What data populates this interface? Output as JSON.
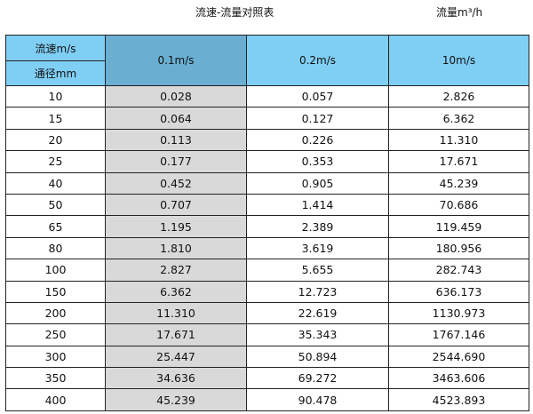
{
  "title": "流速-流量对照表",
  "unit": "流量m³/h",
  "header": {
    "velocity_label": "流速m/s",
    "diameter_label": "通径mm",
    "columns": [
      "0.1m/s",
      "0.2m/s",
      "10m/s"
    ]
  },
  "rows": [
    [
      "10",
      "0.028",
      "0.057",
      "2.826"
    ],
    [
      "15",
      "0.064",
      "0.127",
      "6.362"
    ],
    [
      "20",
      "0.113",
      "0.226",
      "11.310"
    ],
    [
      "25",
      "0.177",
      "0.353",
      "17.671"
    ],
    [
      "40",
      "0.452",
      "0.905",
      "45.239"
    ],
    [
      "50",
      "0.707",
      "1.414",
      "70.686"
    ],
    [
      "65",
      "1.195",
      "2.389",
      "119.459"
    ],
    [
      "80",
      "1.810",
      "3.619",
      "180.956"
    ],
    [
      "100",
      "2.827",
      "5.655",
      "282.743"
    ],
    [
      "150",
      "6.362",
      "12.723",
      "636.173"
    ],
    [
      "200",
      "11.310",
      "22.619",
      "1130.973"
    ],
    [
      "250",
      "17.671",
      "35.343",
      "1767.146"
    ],
    [
      "300",
      "25.447",
      "50.894",
      "2544.690"
    ],
    [
      "350",
      "34.636",
      "69.272",
      "3463.606"
    ],
    [
      "400",
      "45.239",
      "90.478",
      "4523.893"
    ]
  ],
  "colors": {
    "header": "#7fcef4",
    "header_highlight": "#6aafd2",
    "highlight_column": "#d9d9d9"
  }
}
